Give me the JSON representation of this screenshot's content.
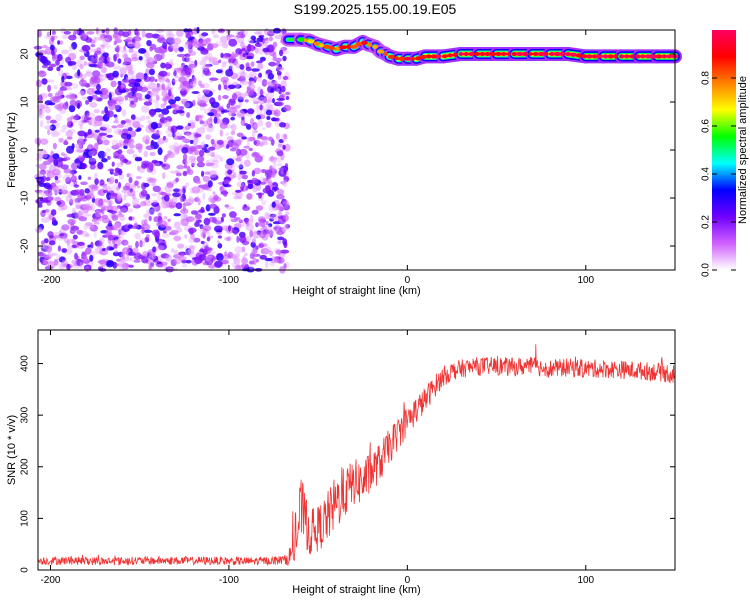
{
  "title": "S199.2025.155.00.19.E05",
  "chart_data": [
    {
      "type": "heatmap",
      "xlabel": "Height of straight line (km)",
      "ylabel": "Frequency (Hz)",
      "xlim": [
        -207,
        150
      ],
      "ylim": [
        -25,
        25
      ],
      "xticks": [
        -200,
        -100,
        0,
        100
      ],
      "yticks": [
        -20,
        -10,
        0,
        10,
        20
      ],
      "grid": false,
      "colorbar": {
        "label": "Normalized spectral amplitude",
        "range": [
          0,
          1
        ],
        "ticks": [
          0,
          0.2,
          0.4,
          0.6,
          0.8
        ],
        "tick_labels": [
          "0.0",
          "0.2",
          "0.4",
          "0.6",
          "0.8"
        ],
        "colors": [
          "#ffffff",
          "#d060ff",
          "#7000ff",
          "#0000ff",
          "#00ffff",
          "#00ff00",
          "#ffff00",
          "#ff8000",
          "#ff0000",
          "#ff0060"
        ]
      },
      "noise_region": {
        "x": [
          -207,
          -67
        ],
        "y": [
          -25,
          25
        ],
        "amplitude": 0.15
      },
      "ridge": {
        "x": [
          -67,
          -60,
          -55,
          -50,
          -45,
          -40,
          -35,
          -30,
          -25,
          -22,
          -18,
          -15,
          -12,
          -10,
          -5,
          0,
          5,
          10,
          20,
          30,
          40,
          50,
          60,
          70,
          80,
          90,
          100,
          110,
          120,
          130,
          140,
          150
        ],
        "y": [
          23,
          23,
          22.8,
          22,
          21.5,
          21,
          21.5,
          21.5,
          22.5,
          22,
          21.5,
          20.5,
          20,
          19.5,
          19,
          19,
          19,
          19.5,
          19.5,
          20,
          20,
          20,
          20,
          20,
          20,
          20,
          19.5,
          19.5,
          19.5,
          19.5,
          19.5,
          19.5
        ],
        "amplitude": [
          0.55,
          0.6,
          0.7,
          0.75,
          0.75,
          0.8,
          0.8,
          0.85,
          0.85,
          0.8,
          0.7,
          0.7,
          0.75,
          0.8,
          0.85,
          0.9,
          0.9,
          0.9,
          0.9,
          0.92,
          0.92,
          0.9,
          0.92,
          0.92,
          0.92,
          0.92,
          0.95,
          0.95,
          0.95,
          0.95,
          0.95,
          0.95
        ]
      }
    },
    {
      "type": "line",
      "xlabel": "Height of straight line (km)",
      "ylabel": "SNR (10 * v/v)",
      "xlim": [
        -207,
        150
      ],
      "ylim": [
        0,
        465
      ],
      "xticks": [
        -200,
        -100,
        0,
        100
      ],
      "yticks": [
        0,
        100,
        200,
        300,
        400
      ],
      "grid": false,
      "series": [
        {
          "color": "#ee3333",
          "x": [
            -207,
            -190,
            -170,
            -150,
            -130,
            -110,
            -90,
            -75,
            -68,
            -65,
            -62,
            -60,
            -58,
            -55,
            -50,
            -45,
            -40,
            -35,
            -30,
            -25,
            -20,
            -15,
            -10,
            -5,
            0,
            5,
            10,
            15,
            20,
            25,
            30,
            40,
            50,
            60,
            70,
            80,
            90,
            100,
            110,
            120,
            130,
            140,
            150
          ],
          "y": [
            18,
            18,
            17,
            18,
            18,
            18,
            17,
            18,
            20,
            30,
            60,
            120,
            110,
            70,
            80,
            100,
            130,
            150,
            170,
            170,
            190,
            210,
            240,
            265,
            290,
            310,
            330,
            355,
            375,
            385,
            390,
            395,
            395,
            393,
            395,
            390,
            392,
            390,
            390,
            388,
            386,
            384,
            380
          ],
          "noise": [
            8,
            8,
            8,
            8,
            8,
            8,
            8,
            8,
            10,
            25,
            50,
            60,
            55,
            45,
            45,
            50,
            55,
            50,
            45,
            45,
            40,
            38,
            35,
            32,
            30,
            28,
            25,
            22,
            20,
            18,
            18,
            18,
            18,
            18,
            18,
            18,
            18,
            18,
            18,
            18,
            18,
            18,
            20
          ]
        }
      ]
    }
  ]
}
